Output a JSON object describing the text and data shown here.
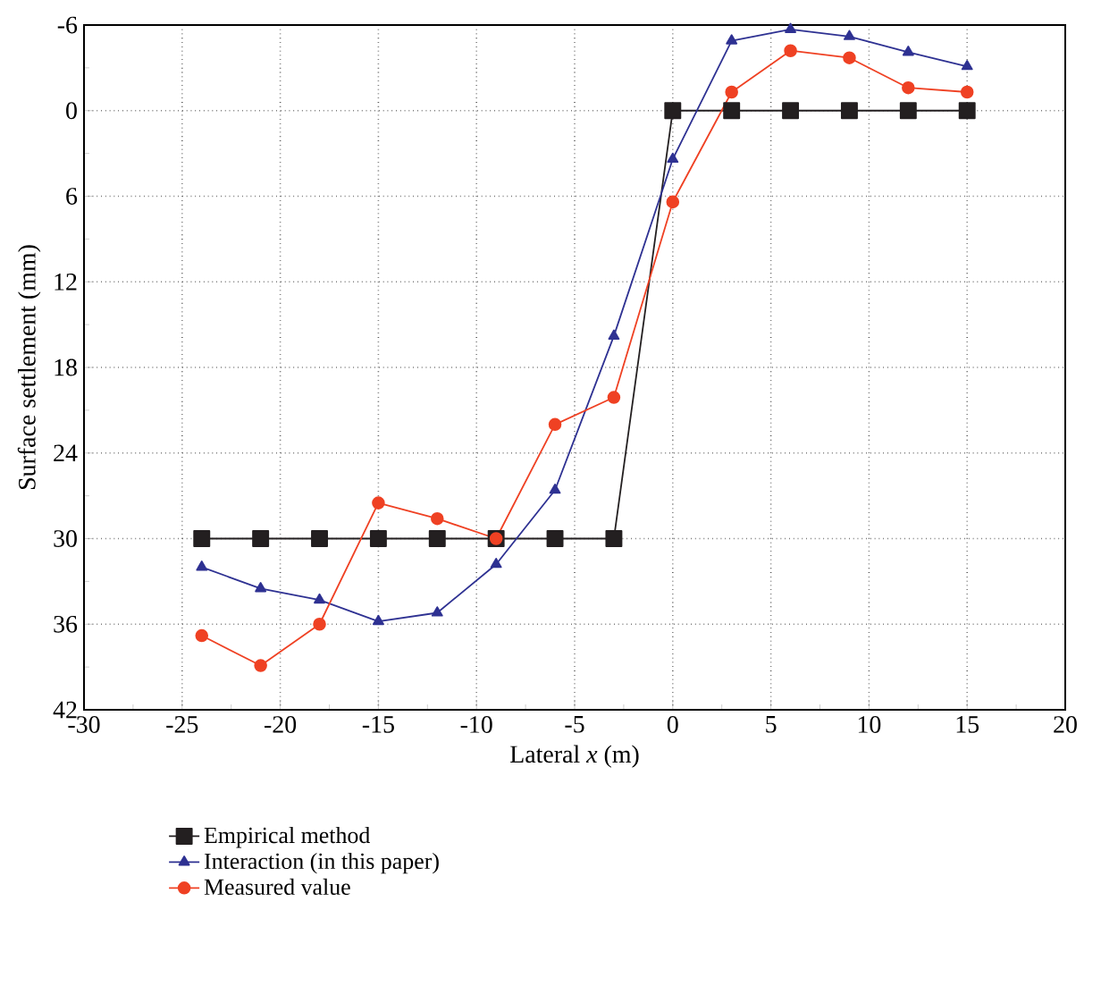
{
  "chart_data": {
    "type": "line",
    "xlabel": "Lateral *x* (m)",
    "ylabel": "Surface settlement (mm)",
    "x": [
      -24,
      -21,
      -18,
      -15,
      -12,
      -9,
      -6,
      -3,
      0,
      3,
      6,
      9,
      12,
      15
    ],
    "series": [
      {
        "name": "Empirical method",
        "color": "#231f20",
        "marker": "square",
        "x": [
          -24,
          -21,
          -18,
          -15,
          -12,
          -9,
          -6,
          -3,
          0,
          3,
          6,
          9,
          12,
          15
        ],
        "values": [
          30,
          30,
          30,
          30,
          30,
          30,
          30,
          30,
          0,
          0,
          0,
          0,
          0,
          0
        ]
      },
      {
        "name": "Interaction (in this paper)",
        "color": "#2e3192",
        "marker": "triangle",
        "values": [
          32,
          33.5,
          34.3,
          35.8,
          35.2,
          31.8,
          26.6,
          15.8,
          3.4,
          -4.9,
          -5.7,
          -5.2,
          -4.1,
          -3.1
        ]
      },
      {
        "name": "Measured value",
        "color": "#ef4123",
        "marker": "circle",
        "values": [
          36.8,
          38.9,
          36,
          27.5,
          28.6,
          30,
          22,
          20.1,
          6.4,
          -1.3,
          -4.2,
          -3.7,
          -1.6,
          -1.3
        ]
      }
    ],
    "xlim": [
      -30,
      20
    ],
    "xticks": [
      -30,
      -25,
      -20,
      -15,
      -10,
      -5,
      0,
      5,
      10,
      15,
      20
    ],
    "ylim": [
      42,
      -6
    ],
    "yticks": [
      -6,
      0,
      6,
      12,
      18,
      24,
      30,
      36,
      42
    ],
    "grid": true,
    "legend": "bottom",
    "line_style": "solid"
  }
}
